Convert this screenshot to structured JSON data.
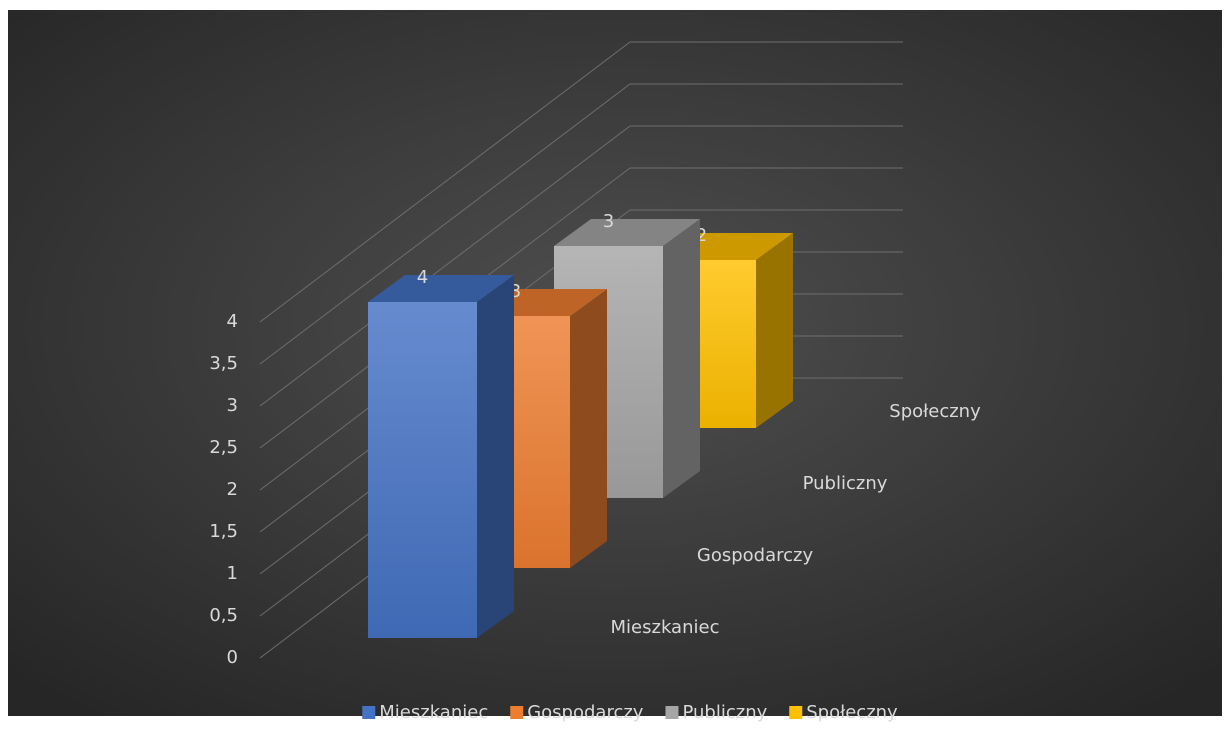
{
  "chart_data": {
    "type": "bar",
    "series": [
      {
        "name": "Mieszkaniec",
        "color": "#4472c4",
        "values": [
          4
        ]
      },
      {
        "name": "Gospodarczy",
        "color": "#ed7d31",
        "values": [
          3
        ]
      },
      {
        "name": "Publiczny",
        "color": "#a5a5a5",
        "values": [
          3
        ]
      },
      {
        "name": "Społeczny",
        "color": "#ffc000",
        "values": [
          2
        ]
      }
    ],
    "ylim": [
      0,
      4
    ],
    "yticks": [
      0,
      {
        "value": 0.5,
        "label": "0,5"
      },
      1,
      {
        "value": 1.5,
        "label": "1,5"
      },
      2,
      {
        "value": 2.5,
        "label": "2,5"
      },
      3,
      {
        "value": 3.5,
        "label": "3,5"
      },
      4
    ],
    "grid": true,
    "legend": "bottom"
  }
}
